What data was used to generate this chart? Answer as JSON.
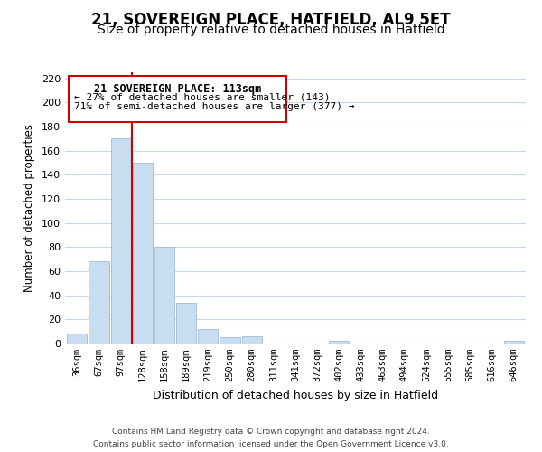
{
  "title": "21, SOVEREIGN PLACE, HATFIELD, AL9 5ET",
  "subtitle": "Size of property relative to detached houses in Hatfield",
  "xlabel": "Distribution of detached houses by size in Hatfield",
  "ylabel": "Number of detached properties",
  "bar_labels": [
    "36sqm",
    "67sqm",
    "97sqm",
    "128sqm",
    "158sqm",
    "189sqm",
    "219sqm",
    "250sqm",
    "280sqm",
    "311sqm",
    "341sqm",
    "372sqm",
    "402sqm",
    "433sqm",
    "463sqm",
    "494sqm",
    "524sqm",
    "555sqm",
    "585sqm",
    "616sqm",
    "646sqm"
  ],
  "bar_values": [
    8,
    68,
    170,
    150,
    80,
    34,
    12,
    5,
    6,
    0,
    0,
    0,
    2,
    0,
    0,
    0,
    0,
    0,
    0,
    0,
    2
  ],
  "bar_color": "#c9ddf0",
  "bar_edge_color": "#a0bcd8",
  "vline_x": 2.5,
  "vline_color": "#cc0000",
  "ylim": [
    0,
    225
  ],
  "yticks": [
    0,
    20,
    40,
    60,
    80,
    100,
    120,
    140,
    160,
    180,
    200,
    220
  ],
  "annotation_title": "21 SOVEREIGN PLACE: 113sqm",
  "annotation_line1": "← 27% of detached houses are smaller (143)",
  "annotation_line2": "71% of semi-detached houses are larger (377) →",
  "footer_line1": "Contains HM Land Registry data © Crown copyright and database right 2024.",
  "footer_line2": "Contains public sector information licensed under the Open Government Licence v3.0.",
  "background_color": "#ffffff",
  "grid_color": "#c8d8ec",
  "title_fontsize": 12,
  "subtitle_fontsize": 10
}
